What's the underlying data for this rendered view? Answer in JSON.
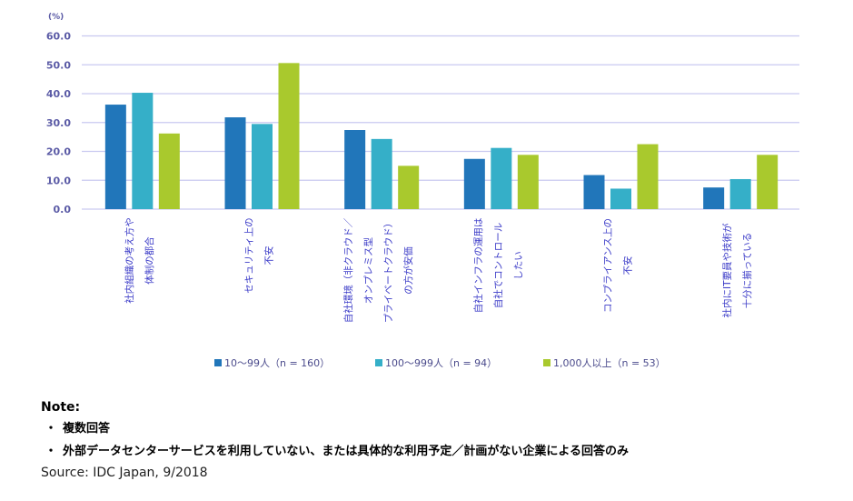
{
  "chart_data": {
    "type": "bar",
    "ylabel_unit": "(%)",
    "ylim": [
      0,
      60
    ],
    "yticks": [
      "0.0",
      "10.0",
      "20.0",
      "30.0",
      "40.0",
      "50.0",
      "60.0"
    ],
    "ytick_values": [
      0,
      10,
      20,
      30,
      40,
      50,
      60
    ],
    "grid": true,
    "legend_position": "bottom",
    "categories": [
      [
        "社内組織の考え方や",
        "体制の都合"
      ],
      [
        "セキュリティ上の",
        "不安"
      ],
      [
        "自社環境（非クラウド／",
        "オンプレミス型",
        "プライベートクラウド）",
        "の方が安価"
      ],
      [
        "自社インフラの運用は",
        "自社でコントロール",
        "したい"
      ],
      [
        "コンプライアンス上の",
        "不安"
      ],
      [
        "社内にIT要員や技術が",
        "十分に揃っている"
      ]
    ],
    "series": [
      {
        "name": "10～99人（n = 160）",
        "color": "#2176ba",
        "values": [
          36.2,
          31.8,
          27.4,
          17.4,
          11.8,
          7.5
        ]
      },
      {
        "name": "100～999人（n = 94）",
        "color": "#35afc8",
        "values": [
          40.3,
          29.5,
          24.3,
          21.2,
          7.1,
          10.4
        ]
      },
      {
        "name": "1,000人以上（n = 53）",
        "color": "#a9c92d",
        "values": [
          26.2,
          50.6,
          15.0,
          18.8,
          22.5,
          18.8
        ]
      }
    ]
  },
  "notes": {
    "title": "Note:",
    "bullet": "・",
    "items": [
      "複数回答",
      "外部データセンターサービスを利用していない、または具体的な利用予定／計画がない企業による回答のみ"
    ],
    "source": "Source: IDC Japan, 9/2018"
  },
  "colors": {
    "gridline": "#c9c9f0",
    "axis_text": "#5b5ba6",
    "category_text": "#3c3cc8"
  }
}
